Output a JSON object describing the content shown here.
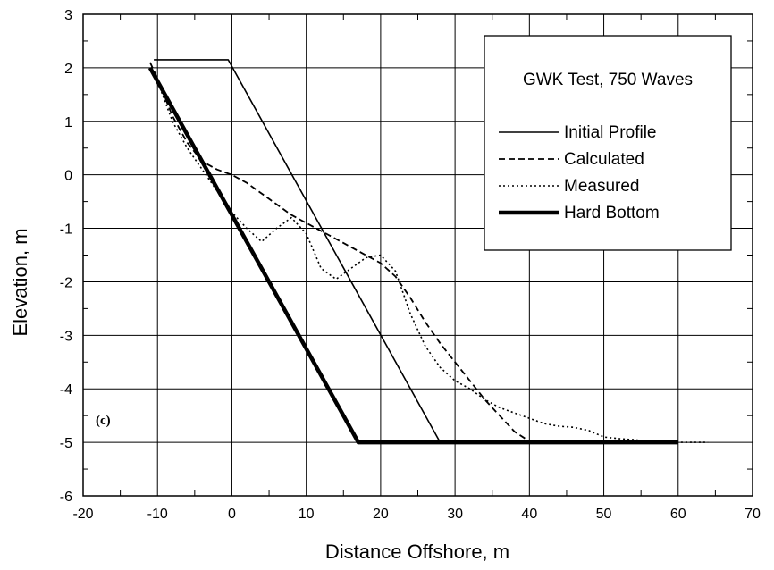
{
  "chart_data": {
    "type": "line",
    "title": "GWK Test, 750 Waves",
    "xlabel": "Distance Offshore, m",
    "ylabel": "Elevation, m",
    "panel_label": "(c)",
    "xlim": [
      -20,
      70
    ],
    "ylim": [
      -6,
      3
    ],
    "xticks": [
      -20,
      -10,
      0,
      10,
      20,
      30,
      40,
      50,
      60,
      70
    ],
    "yticks": [
      -6,
      -5,
      -4,
      -3,
      -2,
      -1,
      0,
      1,
      2,
      3
    ],
    "grid": true,
    "legend_position": "top-right",
    "series": [
      {
        "name": "Initial Profile",
        "style": "solid",
        "color": "#000000",
        "x": [
          -10.5,
          -0.5,
          28,
          60
        ],
        "y": [
          2.15,
          2.15,
          -5,
          -5
        ]
      },
      {
        "name": "Calculated",
        "style": "dashed",
        "color": "#000000",
        "x": [
          -11,
          -10,
          -8,
          -6,
          -4,
          -2,
          0,
          2,
          4,
          6,
          8,
          10,
          12,
          14,
          16,
          18,
          20,
          22,
          24,
          26,
          28,
          30,
          32,
          34,
          36,
          38,
          40,
          42,
          44,
          46,
          48,
          50,
          52,
          54,
          56,
          58,
          60
        ],
        "y": [
          2.1,
          1.8,
          1.1,
          0.6,
          0.25,
          0.1,
          0.0,
          -0.15,
          -0.35,
          -0.55,
          -0.75,
          -0.9,
          -1.05,
          -1.2,
          -1.35,
          -1.5,
          -1.65,
          -1.9,
          -2.3,
          -2.75,
          -3.15,
          -3.5,
          -3.85,
          -4.2,
          -4.5,
          -4.8,
          -4.98,
          -5.0,
          -5.0,
          -5.0,
          -5.0,
          -5.0,
          -5.0,
          -5.0,
          -5.0,
          -5.0,
          -5.0
        ]
      },
      {
        "name": "Measured",
        "style": "dotted",
        "color": "#000000",
        "x": [
          -11,
          -10,
          -8,
          -6,
          -4,
          -2,
          0,
          2,
          4,
          6,
          8,
          10,
          12,
          14,
          16,
          18,
          20,
          22,
          24,
          26,
          28,
          30,
          32,
          34,
          36,
          38,
          40,
          42,
          44,
          46,
          48,
          50,
          52,
          54,
          56,
          58,
          60,
          62,
          64
        ],
        "y": [
          2.0,
          1.75,
          1.0,
          0.5,
          0.1,
          -0.3,
          -0.7,
          -1.0,
          -1.25,
          -1.0,
          -0.8,
          -1.1,
          -1.75,
          -1.95,
          -1.75,
          -1.55,
          -1.5,
          -1.8,
          -2.6,
          -3.2,
          -3.6,
          -3.85,
          -4.0,
          -4.2,
          -4.35,
          -4.45,
          -4.55,
          -4.65,
          -4.7,
          -4.72,
          -4.78,
          -4.9,
          -4.93,
          -4.95,
          -4.98,
          -5.0,
          -5.0,
          -5.0,
          -5.0
        ]
      },
      {
        "name": "Hard Bottom",
        "style": "thick",
        "color": "#000000",
        "x": [
          -11,
          17,
          60
        ],
        "y": [
          2.0,
          -5,
          -5
        ]
      }
    ]
  }
}
